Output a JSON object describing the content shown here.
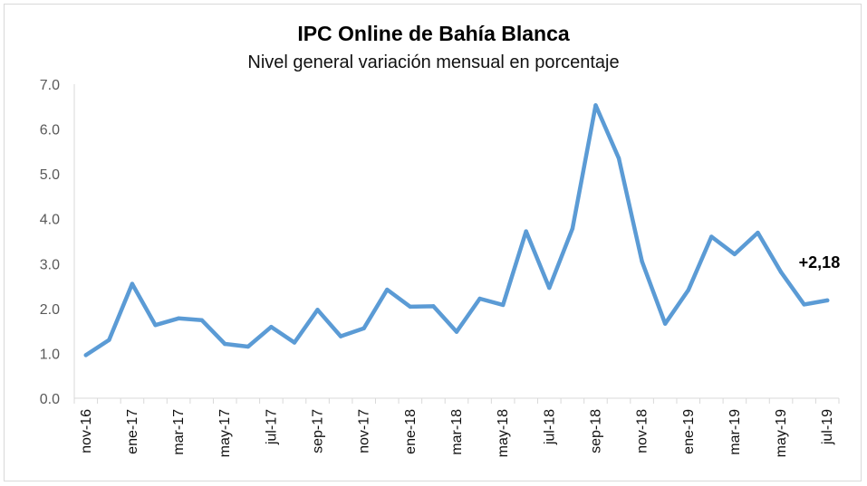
{
  "chart_data": {
    "type": "line",
    "title": "IPC Online de Bahía Blanca",
    "subtitle": "Nivel general variación mensual en porcentaje",
    "xlabel": "",
    "ylabel": "",
    "ylim": [
      0,
      7
    ],
    "yticks": [
      "0.0",
      "1.0",
      "2.0",
      "3.0",
      "4.0",
      "5.0",
      "6.0",
      "7.0"
    ],
    "grid": false,
    "categories": [
      "nov-16",
      "dic-16",
      "ene-17",
      "feb-17",
      "mar-17",
      "abr-17",
      "may-17",
      "jun-17",
      "jul-17",
      "ago-17",
      "sep-17",
      "oct-17",
      "nov-17",
      "dic-17",
      "ene-18",
      "feb-18",
      "mar-18",
      "abr-18",
      "may-18",
      "jun-18",
      "jul-18",
      "ago-18",
      "sep-18",
      "oct-18",
      "nov-18",
      "dic-18",
      "ene-19",
      "feb-19",
      "mar-19",
      "abr-19",
      "may-19",
      "jun-19",
      "jul-19"
    ],
    "tick_labels": [
      "nov-16",
      "ene-17",
      "mar-17",
      "may-17",
      "jul-17",
      "sep-17",
      "nov-17",
      "ene-18",
      "mar-18",
      "may-18",
      "jul-18",
      "sep-18",
      "nov-18",
      "ene-19",
      "mar-19",
      "may-19",
      "jul-19"
    ],
    "series": [
      {
        "values": [
          0.96,
          1.3,
          2.55,
          1.63,
          1.78,
          1.74,
          1.21,
          1.15,
          1.59,
          1.24,
          1.97,
          1.38,
          1.56,
          2.42,
          2.04,
          2.05,
          1.48,
          2.22,
          2.08,
          3.72,
          2.46,
          3.78,
          6.53,
          5.35,
          3.05,
          1.66,
          2.41,
          3.6,
          3.21,
          3.69,
          2.81,
          2.09,
          2.18
        ],
        "color": "#5b9bd5"
      }
    ],
    "annotation": {
      "text": "+2,18"
    }
  }
}
